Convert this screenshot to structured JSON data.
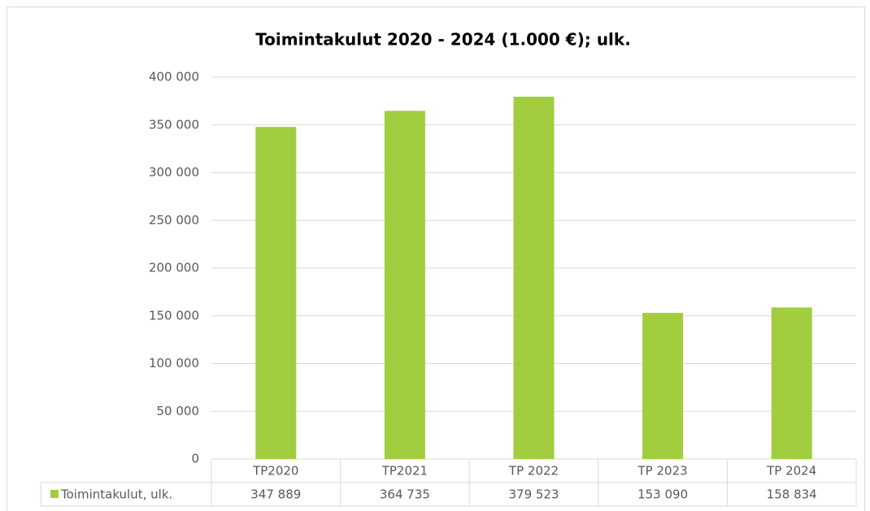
{
  "chart_data": {
    "type": "bar",
    "title": "Toimintakulut 2020 - 2024 (1.000 €); ulk.",
    "categories": [
      "TP2020",
      "TP2021",
      "TP 2022",
      "TP 2023",
      "TP 2024"
    ],
    "series": [
      {
        "name": "Toimintakulut, ulk.",
        "color": "#a2cd3f",
        "values": [
          347889,
          364735,
          379523,
          153090,
          158834
        ],
        "value_labels": [
          "347 889",
          "364 735",
          "379 523",
          "153 090",
          "158 834"
        ]
      }
    ],
    "ylim": [
      0,
      400000
    ],
    "yticks": [
      0,
      {
        "value": 50000,
        "label": "50 000"
      },
      {
        "value": 100000,
        "label": "100 000"
      },
      {
        "value": 150000,
        "label": "150 000"
      },
      {
        "value": 200000,
        "label": "200 000"
      },
      {
        "value": 250000,
        "label": "250 000"
      },
      {
        "value": 300000,
        "label": "300 000"
      },
      {
        "value": 350000,
        "label": "350 000"
      },
      {
        "value": 400000,
        "label": "400 000"
      }
    ],
    "grid": true
  }
}
